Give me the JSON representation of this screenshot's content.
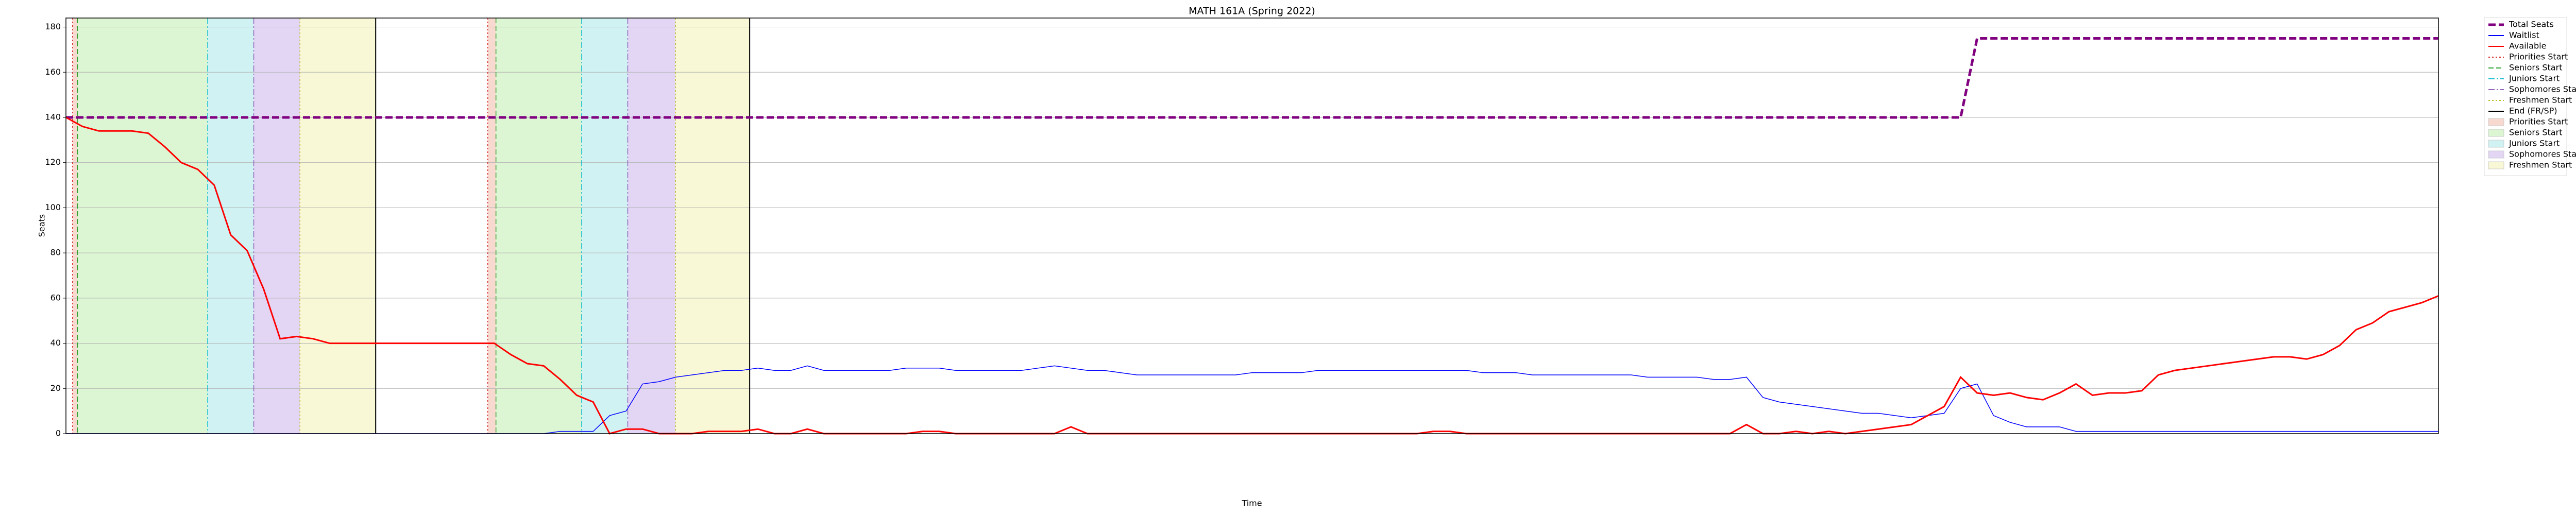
{
  "chart_data": {
    "type": "line",
    "title": "MATH 161A (Spring 2022)",
    "xlabel": "Time",
    "ylabel": "Seats",
    "xlim": [
      0,
      144
    ],
    "ylim": [
      0,
      184
    ],
    "yticks": [
      0,
      20,
      40,
      60,
      80,
      100,
      120,
      140,
      160,
      180
    ],
    "grid": true,
    "legend": "outside right",
    "series": [
      {
        "name": "Total Seats",
        "color": "#800080",
        "style": "dashed",
        "values": [
          140,
          140,
          140,
          140,
          140,
          140,
          140,
          140,
          140,
          140,
          140,
          140,
          140,
          140,
          140,
          140,
          140,
          140,
          140,
          140,
          140,
          140,
          140,
          140,
          140,
          140,
          140,
          140,
          140,
          140,
          140,
          140,
          140,
          140,
          140,
          140,
          140,
          140,
          140,
          140,
          140,
          140,
          140,
          140,
          140,
          140,
          140,
          140,
          140,
          140,
          140,
          140,
          140,
          140,
          140,
          140,
          140,
          140,
          140,
          140,
          140,
          140,
          140,
          140,
          140,
          140,
          140,
          140,
          140,
          140,
          140,
          140,
          140,
          140,
          140,
          140,
          140,
          140,
          140,
          140,
          140,
          140,
          140,
          140,
          140,
          140,
          140,
          140,
          140,
          140,
          140,
          140,
          140,
          140,
          140,
          140,
          140,
          140,
          140,
          140,
          140,
          140,
          140,
          140,
          140,
          140,
          140,
          140,
          140,
          140,
          140,
          140,
          140,
          140,
          140,
          140,
          175,
          175,
          175,
          175,
          175,
          175,
          175,
          175,
          175,
          175,
          175,
          175,
          175,
          175,
          175,
          175,
          175,
          175,
          175,
          175,
          175,
          175,
          175,
          175,
          175,
          175,
          175,
          175,
          175
        ]
      },
      {
        "name": "Waitlist",
        "color": "#0000ff",
        "style": "solid",
        "values": [
          0,
          0,
          0,
          0,
          0,
          0,
          0,
          0,
          0,
          0,
          0,
          0,
          0,
          0,
          0,
          0,
          0,
          0,
          0,
          0,
          0,
          0,
          0,
          0,
          0,
          0,
          0,
          0,
          0,
          0,
          1,
          1,
          1,
          8,
          10,
          22,
          23,
          25,
          26,
          27,
          28,
          28,
          29,
          28,
          28,
          30,
          28,
          28,
          28,
          28,
          28,
          29,
          29,
          29,
          28,
          28,
          28,
          28,
          28,
          29,
          30,
          29,
          28,
          28,
          27,
          26,
          26,
          26,
          26,
          26,
          26,
          26,
          27,
          27,
          27,
          27,
          28,
          28,
          28,
          28,
          28,
          28,
          28,
          28,
          28,
          28,
          27,
          27,
          27,
          26,
          26,
          26,
          26,
          26,
          26,
          26,
          25,
          25,
          25,
          25,
          24,
          24,
          25,
          16,
          14,
          13,
          12,
          11,
          10,
          9,
          9,
          8,
          7,
          8,
          9,
          20,
          22,
          8,
          5,
          3,
          3,
          3,
          1,
          1,
          1,
          1,
          1,
          1,
          1,
          1,
          1,
          1,
          1,
          1,
          1,
          1,
          1,
          1,
          1,
          1,
          1,
          1,
          1,
          1,
          1
        ]
      },
      {
        "name": "Available",
        "color": "#ff0000",
        "style": "solid",
        "values": [
          140,
          136,
          134,
          134,
          134,
          133,
          127,
          120,
          117,
          110,
          88,
          81,
          64,
          42,
          43,
          42,
          40,
          40,
          40,
          40,
          40,
          40,
          40,
          40,
          40,
          40,
          40,
          35,
          31,
          30,
          24,
          17,
          14,
          0,
          2,
          2,
          0,
          0,
          0,
          1,
          1,
          1,
          2,
          0,
          0,
          2,
          0,
          0,
          0,
          0,
          0,
          0,
          1,
          1,
          0,
          0,
          0,
          0,
          0,
          0,
          0,
          3,
          0,
          0,
          0,
          0,
          0,
          0,
          0,
          0,
          0,
          0,
          0,
          0,
          0,
          0,
          0,
          0,
          0,
          0,
          0,
          0,
          0,
          1,
          1,
          0,
          0,
          0,
          0,
          0,
          0,
          0,
          0,
          0,
          0,
          0,
          0,
          0,
          0,
          0,
          0,
          0,
          4,
          0,
          0,
          1,
          0,
          1,
          0,
          1,
          2,
          3,
          4,
          8,
          12,
          25,
          18,
          17,
          18,
          16,
          15,
          18,
          22,
          17,
          18,
          18,
          19,
          26,
          28,
          29,
          30,
          31,
          32,
          33,
          34,
          34,
          33,
          35,
          39,
          46,
          49,
          54,
          56,
          58,
          61
        ]
      }
    ],
    "phases": [
      {
        "name": "Priorities Start",
        "line_color": "#d62728",
        "fill": "#f7d9cf"
      },
      {
        "name": "Seniors Start",
        "line_color": "#2ca02c",
        "fill": "#dcf5d2"
      },
      {
        "name": "Juniors Start",
        "line_color": "#17becf",
        "fill": "#d0f2f3"
      },
      {
        "name": "Sophomores Start",
        "line_color": "#9467bd",
        "fill": "#e3d6f5"
      },
      {
        "name": "Freshmen Start",
        "line_color": "#bcbd22",
        "fill": "#f8f8d6"
      }
    ],
    "end_line": {
      "name": "End (FR/SP)",
      "color": "#000000"
    },
    "rounds": [
      {
        "starts": [
          0.4,
          0.7,
          8.6,
          11.4,
          14.2
        ],
        "end": 18.8
      },
      {
        "starts": [
          25.6,
          26.1,
          31.3,
          34.1,
          37.0
        ],
        "end": 41.5
      }
    ]
  }
}
